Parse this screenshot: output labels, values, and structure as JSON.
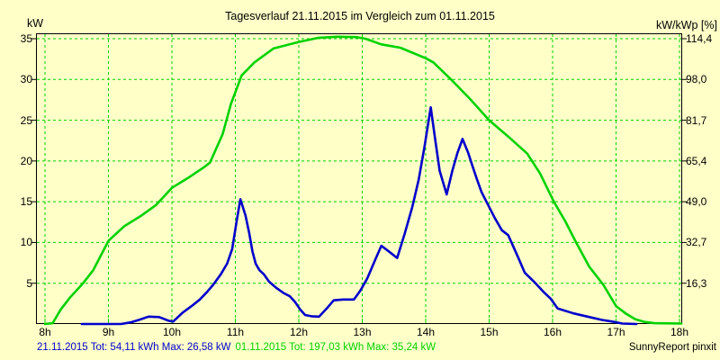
{
  "title": "Tagesverlauf 21.11.2015 im Vergleich zum 01.11.2015",
  "axis_labels": {
    "left_unit": "kW",
    "right_unit": "kW/kWp [%]"
  },
  "footer": {
    "series1_summary": "21.11.2015 Tot: 54,11 kWh Max: 26,58 kW",
    "series2_summary": "01.11.2015 Tot: 197,03 kWh Max: 35,24 kW",
    "credit": "SunnyReport pinxit"
  },
  "colors": {
    "background": "#FFFFC8",
    "grid": "#00D200",
    "frame": "#000000",
    "text": "#000000",
    "series1_blue": "#0000CD",
    "series2_green": "#00D200"
  },
  "chart_data": {
    "type": "line",
    "title": "Tagesverlauf 21.11.2015 im Vergleich zum 01.11.2015",
    "grid": true,
    "x_axis": {
      "ticks": [
        "8h",
        "9h",
        "10h",
        "11h",
        "12h",
        "13h",
        "14h",
        "15h",
        "16h",
        "17h",
        "18h"
      ],
      "hours": [
        8,
        9,
        10,
        11,
        12,
        13,
        14,
        15,
        16,
        17,
        18
      ],
      "range": [
        8,
        18
      ]
    },
    "y_axis_left": {
      "label": "kW",
      "tick_values": [
        35,
        30,
        25,
        20,
        15,
        10,
        5
      ],
      "range": [
        0,
        35.6
      ]
    },
    "y_axis_right": {
      "label": "kW/kWp [%]",
      "ticks": [
        "114,4",
        "98,0",
        "81,7",
        "65,4",
        "49,0",
        "32,7",
        "16,3"
      ]
    },
    "series": [
      {
        "name": "21.11.2015",
        "color": "#0000CD",
        "total": "54,11 kWh",
        "max": "26,58 kW",
        "points": [
          [
            8.58,
            0
          ],
          [
            9.2,
            0
          ],
          [
            9.35,
            0.2
          ],
          [
            9.5,
            0.55
          ],
          [
            9.63,
            0.9
          ],
          [
            9.8,
            0.85
          ],
          [
            9.95,
            0.4
          ],
          [
            10.02,
            0.3
          ],
          [
            10.17,
            1.4
          ],
          [
            10.31,
            2.2
          ],
          [
            10.44,
            3.0
          ],
          [
            10.55,
            3.9
          ],
          [
            10.65,
            4.8
          ],
          [
            10.77,
            6.1
          ],
          [
            10.87,
            7.4
          ],
          [
            10.95,
            9.2
          ],
          [
            11.02,
            12.6
          ],
          [
            11.08,
            15.3
          ],
          [
            11.16,
            13.3
          ],
          [
            11.22,
            11.1
          ],
          [
            11.27,
            8.9
          ],
          [
            11.32,
            7.4
          ],
          [
            11.38,
            6.6
          ],
          [
            11.45,
            6.1
          ],
          [
            11.53,
            5.2
          ],
          [
            11.65,
            4.4
          ],
          [
            11.76,
            3.8
          ],
          [
            11.86,
            3.4
          ],
          [
            11.94,
            2.7
          ],
          [
            12.02,
            1.8
          ],
          [
            12.1,
            1.1
          ],
          [
            12.2,
            0.95
          ],
          [
            12.32,
            0.9
          ],
          [
            12.44,
            1.9
          ],
          [
            12.55,
            2.9
          ],
          [
            12.7,
            3.0
          ],
          [
            12.87,
            3.0
          ],
          [
            12.97,
            4.1
          ],
          [
            13.08,
            5.6
          ],
          [
            13.2,
            7.8
          ],
          [
            13.3,
            9.6
          ],
          [
            13.42,
            8.9
          ],
          [
            13.55,
            8.1
          ],
          [
            13.67,
            11.1
          ],
          [
            13.79,
            14.4
          ],
          [
            13.89,
            17.7
          ],
          [
            13.98,
            21.7
          ],
          [
            14.08,
            26.58
          ],
          [
            14.15,
            22.6
          ],
          [
            14.22,
            18.8
          ],
          [
            14.33,
            15.9
          ],
          [
            14.42,
            18.8
          ],
          [
            14.5,
            21.0
          ],
          [
            14.58,
            22.7
          ],
          [
            14.67,
            21.0
          ],
          [
            14.74,
            19.3
          ],
          [
            14.81,
            17.7
          ],
          [
            14.88,
            16.2
          ],
          [
            14.95,
            15.1
          ],
          [
            15.09,
            13.0
          ],
          [
            15.2,
            11.5
          ],
          [
            15.3,
            10.9
          ],
          [
            15.45,
            8.3
          ],
          [
            15.56,
            6.3
          ],
          [
            15.73,
            5.0
          ],
          [
            15.85,
            4.0
          ],
          [
            15.97,
            3.1
          ],
          [
            16.08,
            1.9
          ],
          [
            16.33,
            1.3
          ],
          [
            16.55,
            0.9
          ],
          [
            16.78,
            0.5
          ],
          [
            16.94,
            0.3
          ],
          [
            17.1,
            0.05
          ],
          [
            17.32,
            0
          ]
        ]
      },
      {
        "name": "01.11.2015",
        "color": "#00D200",
        "total": "197,03 kWh",
        "max": "35,24 kW",
        "points": [
          [
            8.0,
            0
          ],
          [
            8.12,
            0.1
          ],
          [
            8.25,
            1.8
          ],
          [
            8.4,
            3.3
          ],
          [
            8.6,
            5.0
          ],
          [
            8.76,
            6.6
          ],
          [
            9.0,
            10.2
          ],
          [
            9.25,
            12.0
          ],
          [
            9.5,
            13.2
          ],
          [
            9.75,
            14.6
          ],
          [
            10.0,
            16.7
          ],
          [
            10.25,
            17.9
          ],
          [
            10.5,
            19.2
          ],
          [
            10.6,
            19.8
          ],
          [
            10.8,
            23.3
          ],
          [
            10.93,
            27.0
          ],
          [
            11.1,
            30.5
          ],
          [
            11.3,
            32.1
          ],
          [
            11.6,
            33.8
          ],
          [
            12.0,
            34.6
          ],
          [
            12.3,
            35.1
          ],
          [
            12.6,
            35.24
          ],
          [
            12.9,
            35.2
          ],
          [
            13.05,
            35.0
          ],
          [
            13.3,
            34.3
          ],
          [
            13.6,
            33.9
          ],
          [
            14.0,
            32.6
          ],
          [
            14.12,
            32.1
          ],
          [
            14.4,
            30.0
          ],
          [
            14.7,
            27.6
          ],
          [
            15.0,
            25.0
          ],
          [
            15.3,
            23.0
          ],
          [
            15.6,
            20.9
          ],
          [
            15.8,
            18.5
          ],
          [
            16.02,
            15.0
          ],
          [
            16.2,
            12.6
          ],
          [
            16.37,
            10.0
          ],
          [
            16.58,
            7.0
          ],
          [
            16.8,
            4.8
          ],
          [
            17.0,
            2.2
          ],
          [
            17.15,
            1.3
          ],
          [
            17.3,
            0.6
          ],
          [
            17.45,
            0.25
          ],
          [
            17.6,
            0.1
          ],
          [
            18.03,
            0.05
          ]
        ]
      }
    ]
  }
}
